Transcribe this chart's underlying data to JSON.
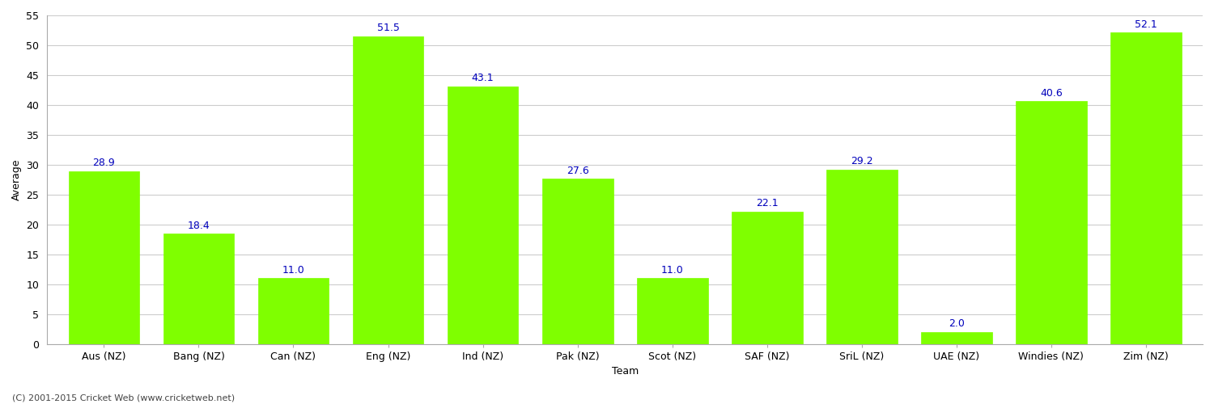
{
  "categories": [
    "Aus (NZ)",
    "Bang (NZ)",
    "Can (NZ)",
    "Eng (NZ)",
    "Ind (NZ)",
    "Pak (NZ)",
    "Scot (NZ)",
    "SAF (NZ)",
    "SriL (NZ)",
    "UAE (NZ)",
    "Windies (NZ)",
    "Zim (NZ)"
  ],
  "values": [
    28.9,
    18.4,
    11.0,
    51.5,
    43.1,
    27.6,
    11.0,
    22.1,
    29.2,
    2.0,
    40.6,
    52.1
  ],
  "bar_color": "#7fff00",
  "bar_edge_color": "#7fff00",
  "label_color": "#0000bb",
  "xlabel": "Team",
  "ylabel": "Average",
  "ylim": [
    0,
    55
  ],
  "yticks": [
    0,
    5,
    10,
    15,
    20,
    25,
    30,
    35,
    40,
    45,
    50,
    55
  ],
  "background_color": "#ffffff",
  "grid_color": "#cccccc",
  "footer": "(C) 2001-2015 Cricket Web (www.cricketweb.net)",
  "label_fontsize": 9,
  "axis_label_fontsize": 9,
  "tick_fontsize": 9,
  "footer_fontsize": 8,
  "bar_width": 0.75
}
